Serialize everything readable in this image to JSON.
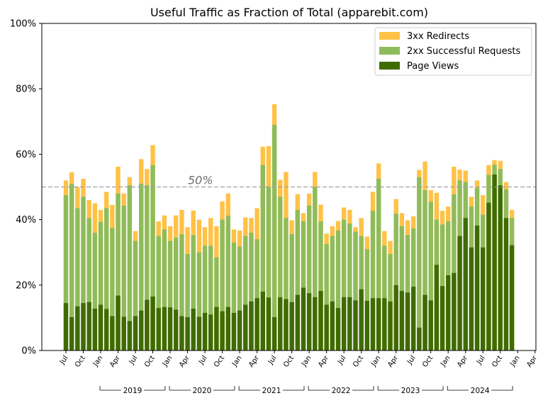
{
  "chart_data": {
    "type": "bar",
    "stacked": false,
    "overlapping_bars": true,
    "title": "Useful Traffic as Fraction of Total (apparebit.com)",
    "xlabel": "",
    "ylabel": "",
    "ylim": [
      0,
      1
    ],
    "yticks": [
      "0%",
      "20%",
      "40%",
      "60%",
      "80%",
      "100%"
    ],
    "x_start_month": "2018-07",
    "month_tick_labels": [
      "Jul",
      "Oct",
      "Jan",
      "Apr",
      "Jul",
      "Oct",
      "Jan",
      "Apr",
      "Jul",
      "Oct",
      "Jan",
      "Apr",
      "Jul",
      "Oct",
      "Jan",
      "Apr",
      "Jul",
      "Oct",
      "Jan",
      "Apr",
      "Jul",
      "Oct",
      "Jan",
      "Apr",
      "Jul",
      "Oct",
      "Jan",
      "Apr",
      "Jul",
      "Oct"
    ],
    "year_groups": [
      {
        "label": "2019",
        "start": 6,
        "end": 17
      },
      {
        "label": "2020",
        "start": 18,
        "end": 29
      },
      {
        "label": "2021",
        "start": 30,
        "end": 41
      },
      {
        "label": "2022",
        "start": 42,
        "end": 53
      },
      {
        "label": "2023",
        "start": 54,
        "end": 65
      },
      {
        "label": "2024",
        "start": 66,
        "end": 77
      }
    ],
    "reference_line": {
      "value": 0.5,
      "label": "50%",
      "color": "#a0a0a0"
    },
    "legend_position": "top-right",
    "series": [
      {
        "name": "3xx Redirects",
        "color": "#ffc247",
        "values": [
          0.52,
          0.545,
          0.5,
          0.525,
          0.46,
          0.45,
          0.43,
          0.485,
          0.445,
          0.562,
          0.48,
          0.53,
          0.365,
          0.585,
          0.555,
          0.628,
          0.395,
          0.413,
          0.38,
          0.413,
          0.43,
          0.377,
          0.428,
          0.4,
          0.377,
          0.405,
          0.38,
          0.456,
          0.48,
          0.37,
          0.367,
          0.407,
          0.405,
          0.435,
          0.623,
          0.625,
          0.753,
          0.522,
          0.546,
          0.398,
          0.478,
          0.42,
          0.48,
          0.546,
          0.446,
          0.357,
          0.38,
          0.396,
          0.437,
          0.43,
          0.377,
          0.405,
          0.348,
          0.485,
          0.572,
          0.365,
          0.335,
          0.463,
          0.42,
          0.398,
          0.41,
          0.552,
          0.578,
          0.49,
          0.482,
          0.427,
          0.44,
          0.562,
          0.553,
          0.55,
          0.47,
          0.52,
          0.475,
          0.567,
          0.582,
          0.58,
          0.515,
          0.43
        ]
      },
      {
        "name": "2xx Successful Requests",
        "color": "#8fbc5a",
        "values": [
          0.475,
          0.51,
          0.435,
          0.47,
          0.405,
          0.36,
          0.393,
          0.435,
          0.375,
          0.48,
          0.443,
          0.505,
          0.335,
          0.51,
          0.505,
          0.567,
          0.35,
          0.37,
          0.335,
          0.345,
          0.355,
          0.295,
          0.353,
          0.3,
          0.32,
          0.32,
          0.285,
          0.4,
          0.412,
          0.33,
          0.318,
          0.35,
          0.36,
          0.34,
          0.567,
          0.5,
          0.69,
          0.47,
          0.405,
          0.356,
          0.43,
          0.395,
          0.443,
          0.5,
          0.395,
          0.325,
          0.35,
          0.367,
          0.4,
          0.388,
          0.363,
          0.35,
          0.31,
          0.427,
          0.525,
          0.32,
          0.295,
          0.418,
          0.38,
          0.353,
          0.373,
          0.53,
          0.49,
          0.455,
          0.4,
          0.385,
          0.395,
          0.477,
          0.52,
          0.515,
          0.44,
          0.497,
          0.415,
          0.537,
          0.568,
          0.555,
          0.493,
          0.405
        ]
      },
      {
        "name": "Page Views",
        "color": "#3f6b00",
        "values": [
          0.145,
          0.102,
          0.135,
          0.145,
          0.148,
          0.128,
          0.14,
          0.127,
          0.105,
          0.168,
          0.103,
          0.09,
          0.105,
          0.122,
          0.155,
          0.165,
          0.13,
          0.133,
          0.132,
          0.125,
          0.105,
          0.102,
          0.128,
          0.103,
          0.115,
          0.11,
          0.133,
          0.12,
          0.133,
          0.115,
          0.122,
          0.14,
          0.15,
          0.16,
          0.18,
          0.162,
          0.102,
          0.163,
          0.157,
          0.148,
          0.17,
          0.192,
          0.175,
          0.163,
          0.182,
          0.14,
          0.15,
          0.13,
          0.163,
          0.163,
          0.153,
          0.187,
          0.152,
          0.16,
          0.16,
          0.16,
          0.15,
          0.2,
          0.182,
          0.177,
          0.195,
          0.07,
          0.17,
          0.153,
          0.262,
          0.197,
          0.23,
          0.237,
          0.35,
          0.405,
          0.315,
          0.382,
          0.315,
          0.452,
          0.538,
          0.505,
          0.405,
          0.322
        ]
      }
    ]
  }
}
